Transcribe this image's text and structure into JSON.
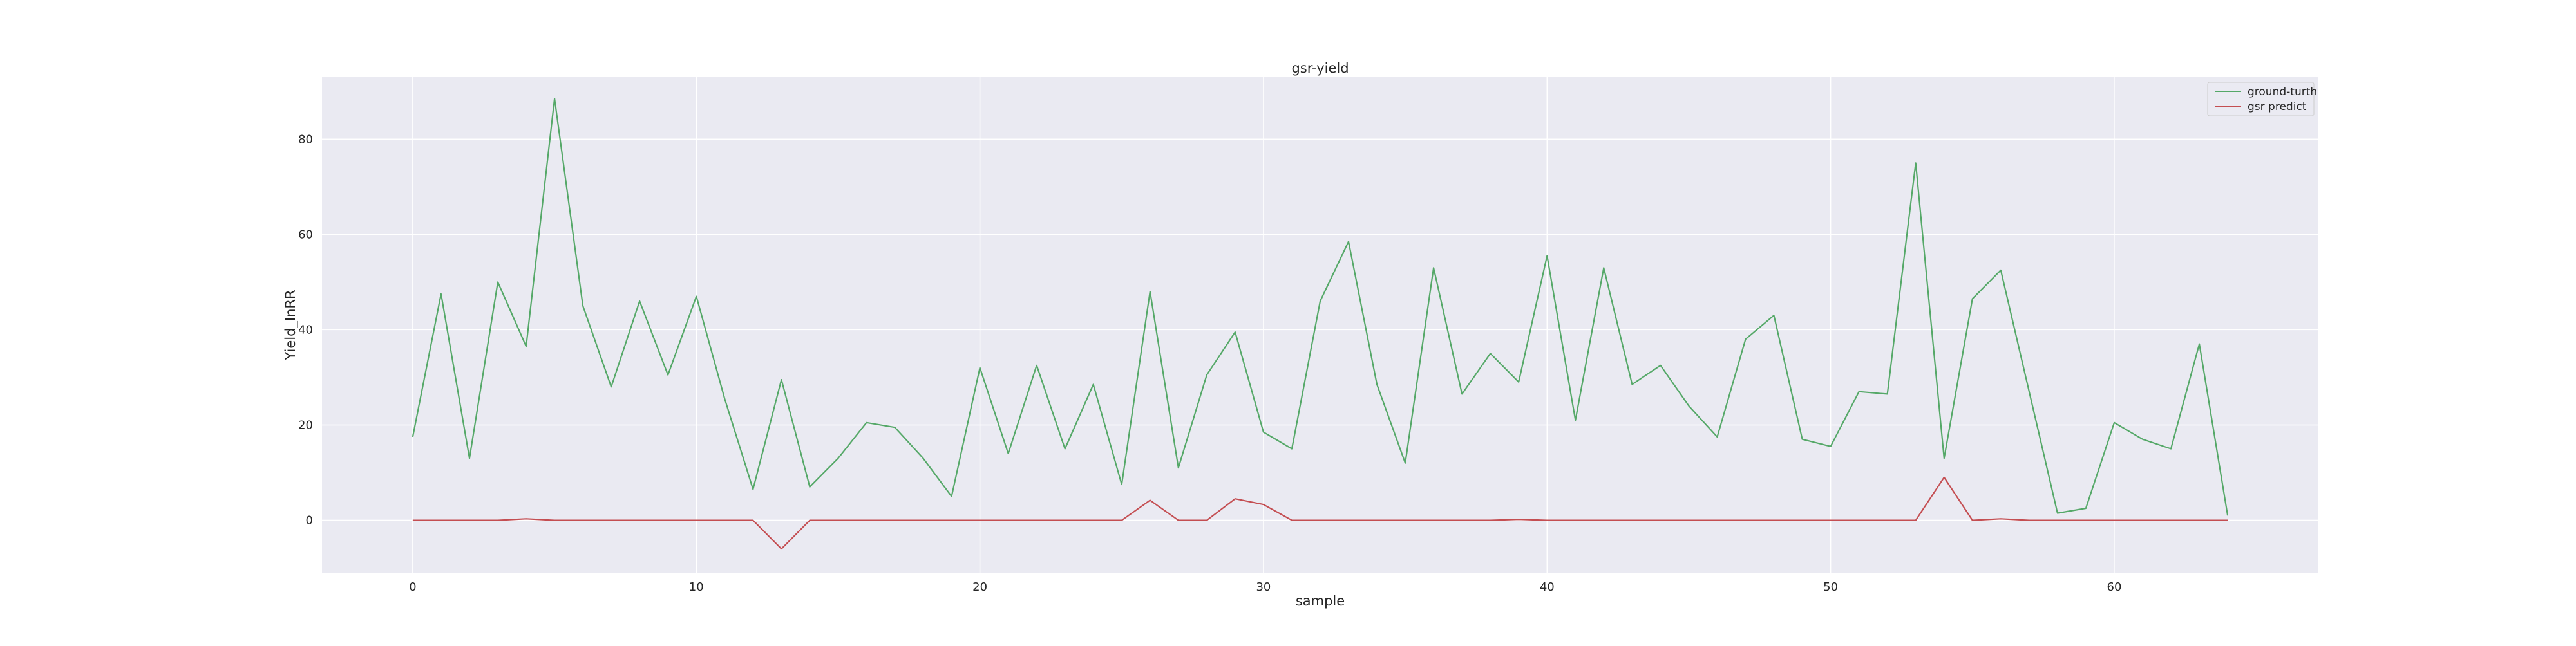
{
  "chart_data": {
    "type": "line",
    "title": "gsr-yield",
    "xlabel": "sample",
    "ylabel": "Yield_InRR",
    "xlim": [
      -3.2,
      67.2
    ],
    "ylim": [
      -11,
      93
    ],
    "xticks": [
      0,
      10,
      20,
      30,
      40,
      50,
      60
    ],
    "yticks": [
      0,
      20,
      40,
      60,
      80
    ],
    "grid": true,
    "legend": "top-right",
    "x": [
      0,
      1,
      2,
      3,
      4,
      5,
      6,
      7,
      8,
      9,
      10,
      11,
      12,
      13,
      14,
      15,
      16,
      17,
      18,
      19,
      20,
      21,
      22,
      23,
      24,
      25,
      26,
      27,
      28,
      29,
      30,
      31,
      32,
      33,
      34,
      35,
      36,
      37,
      38,
      39,
      40,
      41,
      42,
      43,
      44,
      45,
      46,
      47,
      48,
      49,
      50,
      51,
      52,
      53,
      54,
      55,
      56,
      57,
      58,
      59,
      60,
      61,
      62,
      63,
      64
    ],
    "series": [
      {
        "name": "ground-turth",
        "color": "#55a868",
        "values": [
          17.5,
          47.5,
          13,
          50,
          36.5,
          88.5,
          45,
          28,
          46,
          30.5,
          47,
          25.5,
          6.5,
          29.5,
          7,
          13,
          20.5,
          19.5,
          13,
          5,
          32,
          14,
          32.5,
          15,
          28.5,
          7.5,
          48,
          11,
          30.5,
          39.5,
          18.5,
          15,
          46,
          58.5,
          28.5,
          12,
          53,
          26.5,
          35,
          29,
          55.5,
          21,
          53,
          28.5,
          32.5,
          24,
          17.5,
          38,
          43,
          17,
          15.5,
          27,
          26.5,
          75,
          13,
          46.5,
          52.5,
          27,
          1.5,
          2.5,
          20.5,
          17,
          15,
          37,
          1
        ]
      },
      {
        "name": "gsr predict",
        "color": "#c44e52",
        "values": [
          0,
          0,
          0,
          0,
          0.3,
          0,
          0,
          0,
          0,
          0,
          0,
          0,
          0,
          -6,
          0,
          0,
          0,
          0,
          0,
          0,
          0,
          0,
          0,
          0,
          0,
          0,
          4.2,
          0,
          0,
          4.5,
          3.3,
          0,
          0,
          0,
          0,
          0,
          0,
          0,
          0,
          0.2,
          0,
          0,
          0,
          0,
          0,
          0,
          0,
          0,
          0,
          0,
          0,
          0,
          0,
          0,
          9,
          0,
          0.3,
          0,
          0,
          0,
          0,
          0,
          0,
          0,
          0
        ]
      }
    ]
  },
  "colors": {
    "plot_background": "#eaeaf2",
    "grid": "#ffffff",
    "text": "#262626"
  }
}
